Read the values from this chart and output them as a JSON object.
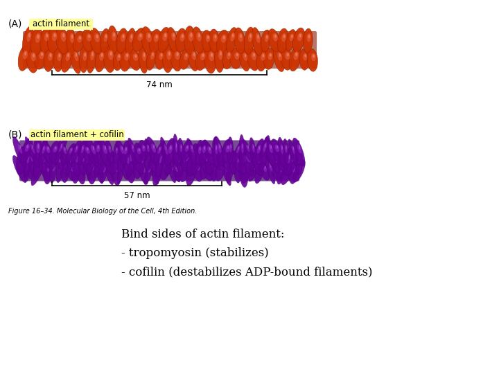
{
  "background_color": "#ffffff",
  "panel_A_label": "(A)",
  "panel_A_tag": "actin filament",
  "panel_A_tag_bg": "#ffff99",
  "panel_A_scale_label": "74 nm",
  "panel_B_label": "(B)",
  "panel_B_tag": "actin filament + cofilin",
  "panel_B_tag_bg": "#ffff99",
  "panel_B_scale_label": "57 nm",
  "figure_caption": "Figure 16–34. Molecular Biology of the Cell, 4th Edition.",
  "annotation_line1": "Bind sides of actin filament:",
  "annotation_line2": "- tropomyosin (stabilizes)",
  "annotation_line3": "- cofilin (destabilizes ADP-bound filaments)",
  "filament_A_dark": "#8b1a00",
  "filament_A_mid": "#cc3300",
  "filament_A_light": "#e86040",
  "filament_A_highlight": "#f5a080",
  "filament_B_dark": "#3d0066",
  "filament_B_mid": "#660099",
  "filament_B_light": "#9933cc",
  "filament_B_highlight": "#cc88ee",
  "fig_width": 7.2,
  "fig_height": 5.4,
  "dpi": 100
}
